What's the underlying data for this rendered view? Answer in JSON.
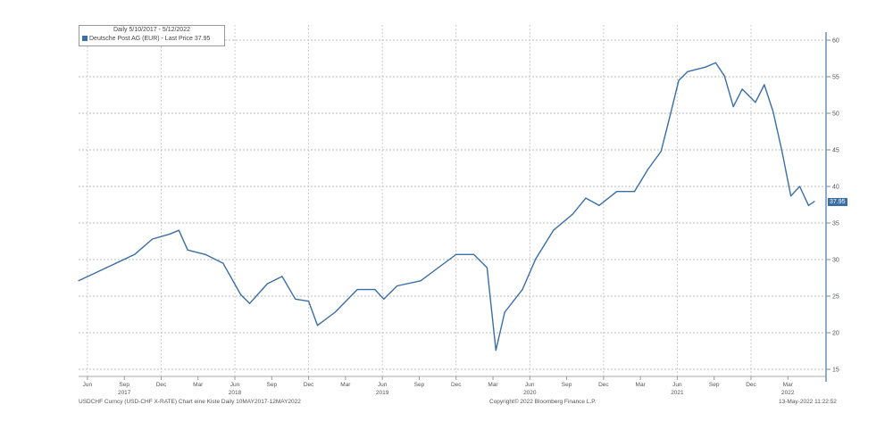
{
  "chart_data": {
    "type": "line",
    "title": "Daily 5/10/2017 - 5/12/2022",
    "legend": {
      "label": "Deutsche Post AG (EUR) - Last Price 37.95",
      "color": "#3a6ea5",
      "placement": "top-left"
    },
    "last_price_tag": "37.95",
    "ylim": [
      14,
      61
    ],
    "y_ticks": [
      "15",
      "20",
      "25",
      "30",
      "35",
      "40",
      "45",
      "50",
      "55",
      "60"
    ],
    "xlim": [
      2017.36,
      2022.37
    ],
    "x_ticks": [
      {
        "label": "Jun",
        "x": 2017.42
      },
      {
        "label": "Sep",
        "x": 2017.67
      },
      {
        "label": "Dec",
        "x": 2017.92
      },
      {
        "label": "Mar",
        "x": 2018.17
      },
      {
        "label": "Jun",
        "x": 2018.42
      },
      {
        "label": "Sep",
        "x": 2018.67
      },
      {
        "label": "Dec",
        "x": 2018.92
      },
      {
        "label": "Mar",
        "x": 2019.17
      },
      {
        "label": "Jun",
        "x": 2019.42
      },
      {
        "label": "Sep",
        "x": 2019.67
      },
      {
        "label": "Dec",
        "x": 2019.92
      },
      {
        "label": "Mar",
        "x": 2020.17
      },
      {
        "label": "Jun",
        "x": 2020.42
      },
      {
        "label": "Sep",
        "x": 2020.67
      },
      {
        "label": "Dec",
        "x": 2020.92
      },
      {
        "label": "Mar",
        "x": 2021.17
      },
      {
        "label": "Jun",
        "x": 2021.42
      },
      {
        "label": "Sep",
        "x": 2021.67
      },
      {
        "label": "Dec",
        "x": 2021.92
      },
      {
        "label": "Mar",
        "x": 2022.17
      }
    ],
    "year_labels": [
      {
        "label": "2017",
        "x": 2017.67
      },
      {
        "label": "2018",
        "x": 2018.42
      },
      {
        "label": "2019",
        "x": 2019.42
      },
      {
        "label": "2020",
        "x": 2020.42
      },
      {
        "label": "2021",
        "x": 2021.42
      },
      {
        "label": "2022",
        "x": 2022.17
      }
    ],
    "series": [
      {
        "name": "Deutsche Post AG (EUR)",
        "x": [
          2017.36,
          2017.55,
          2017.74,
          2017.86,
          2017.98,
          2018.04,
          2018.1,
          2018.22,
          2018.34,
          2018.46,
          2018.52,
          2018.64,
          2018.74,
          2018.83,
          2018.92,
          2018.98,
          2019.1,
          2019.25,
          2019.37,
          2019.43,
          2019.52,
          2019.68,
          2019.8,
          2019.92,
          2020.04,
          2020.13,
          2020.19,
          2020.25,
          2020.37,
          2020.46,
          2020.58,
          2020.71,
          2020.8,
          2020.89,
          2021.01,
          2021.13,
          2021.22,
          2021.31,
          2021.37,
          2021.43,
          2021.49,
          2021.61,
          2021.68,
          2021.74,
          2021.8,
          2021.86,
          2021.95,
          2022.01,
          2022.07,
          2022.13,
          2022.19,
          2022.25,
          2022.31,
          2022.35
        ],
        "y": [
          27.1,
          28.9,
          30.7,
          32.8,
          33.5,
          34.0,
          31.3,
          30.7,
          29.5,
          25.2,
          24.0,
          26.7,
          27.7,
          24.6,
          24.3,
          21.0,
          22.8,
          25.9,
          25.9,
          24.6,
          26.4,
          27.1,
          28.9,
          30.7,
          30.7,
          28.9,
          17.6,
          22.8,
          25.9,
          30.1,
          34.0,
          36.2,
          38.4,
          37.4,
          39.3,
          39.3,
          42.3,
          44.8,
          49.6,
          54.5,
          55.7,
          56.3,
          56.9,
          55.1,
          50.9,
          53.3,
          51.5,
          53.9,
          50.2,
          44.8,
          38.7,
          40.0,
          37.4,
          37.95
        ]
      }
    ]
  },
  "footer": {
    "left": "USDCHF Curncy (USD-CHF X-RATE) Chart eine Kiste  Daily 10MAY2017-12MAY2022",
    "center": "Copyright© 2022 Bloomberg Finance L.P.",
    "right": "13-May-2022 11:22:52"
  }
}
